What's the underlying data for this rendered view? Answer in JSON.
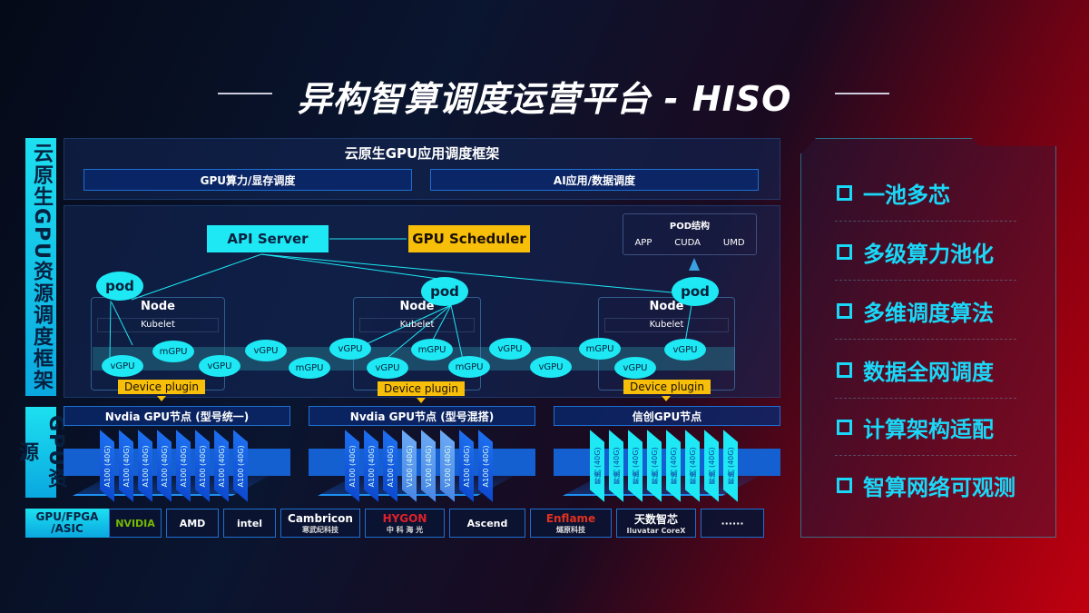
{
  "title": "异构智算调度运营平台 - HISO",
  "left_labels": {
    "framework": "云原生GPU资源调度框架",
    "resources": "GPU资源",
    "hardware": "GPU/FPGA /ASIC"
  },
  "top": {
    "heading": "云原生GPU应用调度框架",
    "bars": [
      "GPU算力/显存调度",
      "AI应用/数据调度"
    ]
  },
  "scheduler": {
    "api_server": "API Server",
    "gpu_scheduler": "GPU Scheduler",
    "pod_structure": {
      "title": "POD结构",
      "items": [
        "APP",
        "CUDA",
        "UMD"
      ]
    },
    "pod_label": "pod",
    "node_label": "Node",
    "kubelet_label": "Kubelet",
    "device_plugin": "Device plugin",
    "devices": [
      "vGPU",
      "mGPU",
      "vGPU",
      "vGPU",
      "mGPU",
      "vGPU",
      "vGPU",
      "mGPU",
      "mGPU",
      "vGPU",
      "vGPU",
      "mGPU",
      "vGPU",
      "vGPU"
    ]
  },
  "gpu_nodes": [
    {
      "title": "Nvdia GPU节点 (型号统一)",
      "chips": [
        "A100 (40G)",
        "A100 (40G)",
        "A100 (40G)",
        "A100 (40G)",
        "A100 (40G)",
        "A100 (40G)",
        "A100 (40G)",
        "A100 (40G)"
      ]
    },
    {
      "title": "Nvdia GPU节点 (型号混搭)",
      "chips": [
        "A100 (40G)",
        "A100 (40G)",
        "A100 (40G)",
        "V100 (40G)",
        "V100 (40G)",
        "V100 (40G)",
        "A100 (40G)",
        "A100 (40G)"
      ]
    },
    {
      "title": "信创GPU节点",
      "chips": [
        "昇腾 (40G)",
        "昇腾 (40G)",
        "昇腾 (40G)",
        "昇腾 (40G)",
        "昇腾 (40G)",
        "昇腾 (40G)",
        "昇腾 (40G)",
        "昇腾 (40G)"
      ]
    }
  ],
  "vendors": [
    {
      "name": "NVIDIA",
      "color": "#76b900"
    },
    {
      "name": "AMD",
      "color": "#ffffff"
    },
    {
      "name": "intel",
      "color": "#ffffff"
    },
    {
      "name": "Cambricon",
      "sub": "寒武纪科技",
      "color": "#ffffff"
    },
    {
      "name": "HYGON",
      "sub": "中 科 海 光",
      "color": "#e0202a"
    },
    {
      "name": "Ascend",
      "color": "#ffffff"
    },
    {
      "name": "Enflame",
      "sub": "燧原科技",
      "color": "#e03020"
    },
    {
      "name": "天数智芯",
      "sub": "Iluvatar CoreX",
      "color": "#ffffff"
    },
    {
      "name": "······",
      "color": "#ffffff"
    }
  ],
  "features": [
    "一池多芯",
    "多级算力池化",
    "多维调度算法",
    "数据全网调度",
    "计算架构适配",
    "智算网络可观测"
  ],
  "colors": {
    "cyan": "#1de8f4",
    "yellow": "#f7be0a",
    "blue": "#1d6ef0",
    "feature_text": "#1ad8f8"
  }
}
